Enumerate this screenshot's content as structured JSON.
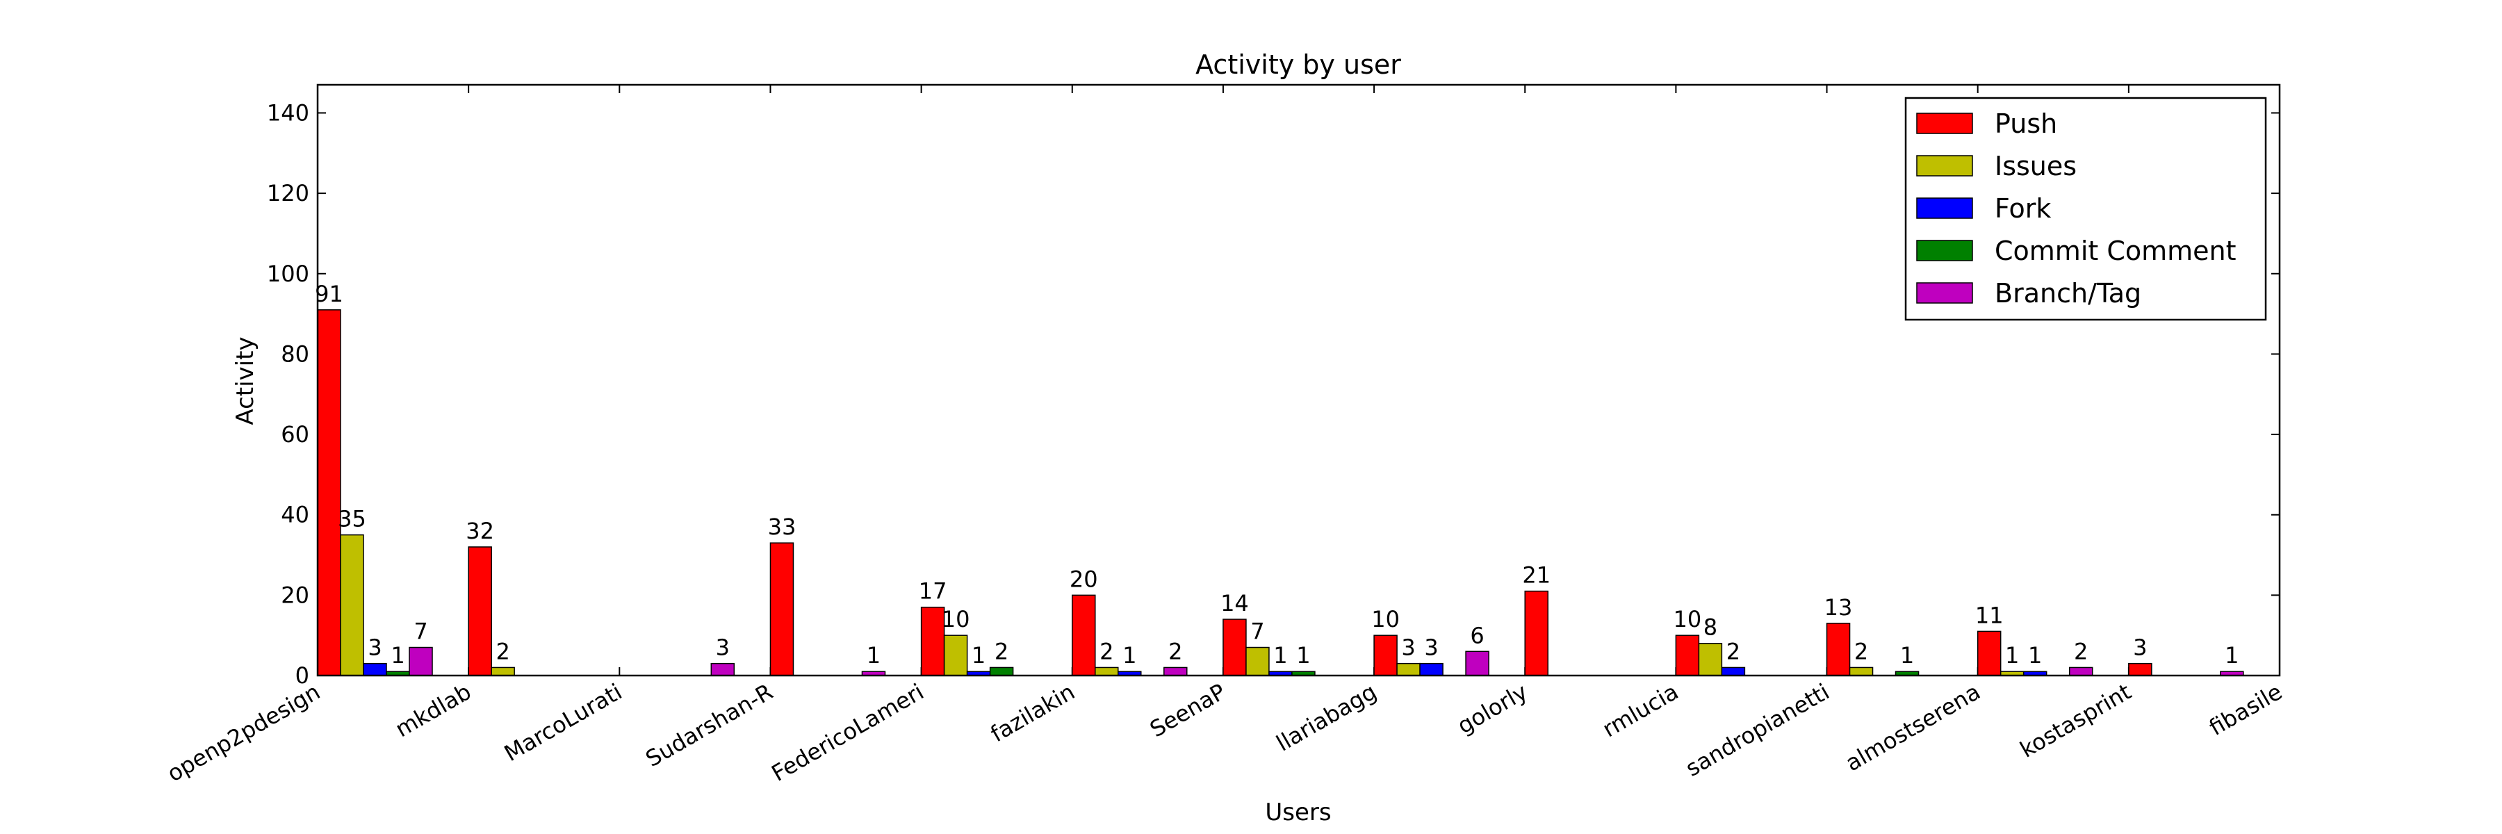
{
  "chart_data": {
    "type": "bar",
    "title": "Activity by user",
    "xlabel": "Users",
    "ylabel": "Activity",
    "ylim": [
      0,
      147
    ],
    "yticks": [
      0,
      20,
      40,
      60,
      80,
      100,
      120,
      140
    ],
    "grid": false,
    "legend_position": "top-right",
    "categories": [
      "openp2pdesign",
      "mkdlab",
      "MarcoLurati",
      "Sudarshan-R",
      "FedericoLameri",
      "fazilakin",
      "SeenaP",
      "llariabagg",
      "golorly",
      "rmlucia",
      "sandropianetti",
      "almostserena",
      "kostasprint",
      "fibasile"
    ],
    "series": [
      {
        "name": "Push",
        "color": "#ff0000",
        "values": [
          91,
          32,
          0,
          33,
          17,
          20,
          14,
          10,
          21,
          10,
          13,
          11,
          3,
          0
        ]
      },
      {
        "name": "Issues",
        "color": "#bfbf00",
        "values": [
          35,
          2,
          0,
          0,
          10,
          2,
          7,
          3,
          0,
          8,
          2,
          1,
          0,
          0
        ]
      },
      {
        "name": "Fork",
        "color": "#0000ff",
        "values": [
          3,
          0,
          0,
          0,
          1,
          1,
          1,
          3,
          0,
          2,
          0,
          1,
          0,
          0
        ]
      },
      {
        "name": "Commit Comment",
        "color": "#008000",
        "values": [
          1,
          0,
          0,
          0,
          2,
          0,
          1,
          0,
          0,
          0,
          1,
          0,
          0,
          0
        ]
      },
      {
        "name": "Branch/Tag",
        "color": "#bf00bf",
        "values": [
          7,
          0,
          3,
          1,
          0,
          2,
          0,
          6,
          0,
          0,
          0,
          2,
          1,
          0
        ]
      }
    ]
  }
}
